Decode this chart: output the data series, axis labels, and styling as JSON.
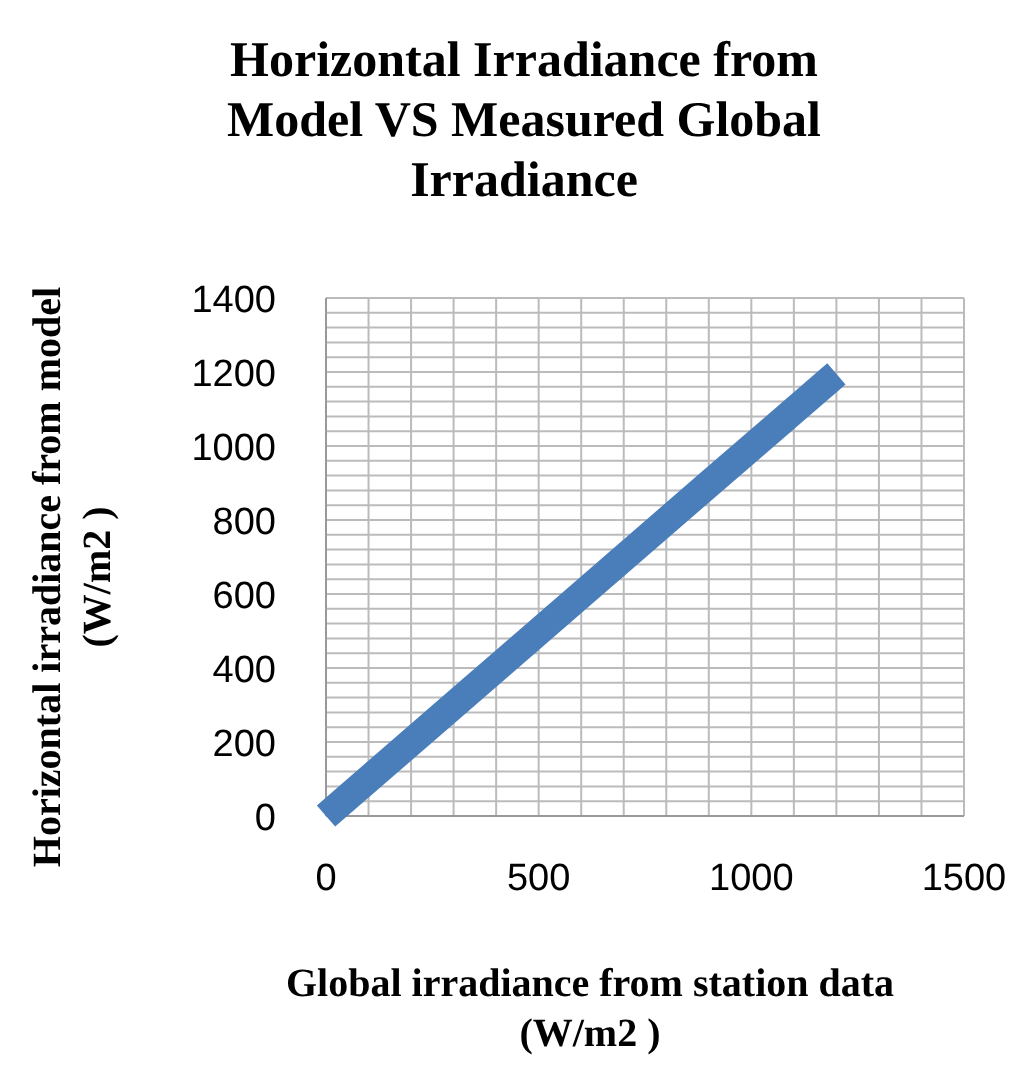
{
  "chart_data": {
    "type": "line",
    "title": "Horizontal Irradiance from Model VS Measured Global Irradiance",
    "xlabel": "Global irradiance from station data (W/m2 )",
    "ylabel": "Horizontal irradiance from model (W/m2 )",
    "x": [
      0,
      300,
      600,
      900,
      1200
    ],
    "series": [
      {
        "color": "#4a7ebb",
        "values": [
          0,
          299,
          598,
          897,
          1195
        ]
      }
    ],
    "xlim": [
      0,
      1500
    ],
    "ylim": [
      0,
      1400
    ],
    "xticks": [
      0,
      {
        "value": 100,
        "label": null
      },
      {
        "value": 200,
        "label": null
      },
      {
        "value": 300,
        "label": null
      },
      {
        "value": 400,
        "label": null
      },
      500,
      {
        "value": 600,
        "label": null
      },
      {
        "value": 700,
        "label": null
      },
      {
        "value": 800,
        "label": null
      },
      {
        "value": 900,
        "label": null
      },
      1000,
      {
        "value": 1100,
        "label": null
      },
      {
        "value": 1200,
        "label": null
      },
      {
        "value": 1300,
        "label": null
      },
      {
        "value": 1400,
        "label": null
      },
      1500
    ],
    "yticks": [
      0,
      {
        "value": 40,
        "label": null
      },
      {
        "value": 80,
        "label": null
      },
      {
        "value": 120,
        "label": null
      },
      {
        "value": 160,
        "label": null
      },
      200,
      {
        "value": 240,
        "label": null
      },
      {
        "value": 280,
        "label": null
      },
      {
        "value": 320,
        "label": null
      },
      {
        "value": 360,
        "label": null
      },
      400,
      {
        "value": 440,
        "label": null
      },
      {
        "value": 480,
        "label": null
      },
      {
        "value": 520,
        "label": null
      },
      {
        "value": 560,
        "label": null
      },
      600,
      {
        "value": 640,
        "label": null
      },
      {
        "value": 680,
        "label": null
      },
      {
        "value": 720,
        "label": null
      },
      {
        "value": 760,
        "label": null
      },
      800,
      {
        "value": 840,
        "label": null
      },
      {
        "value": 880,
        "label": null
      },
      {
        "value": 920,
        "label": null
      },
      {
        "value": 960,
        "label": null
      },
      1000,
      {
        "value": 1040,
        "label": null
      },
      {
        "value": 1080,
        "label": null
      },
      {
        "value": 1120,
        "label": null
      },
      {
        "value": 1160,
        "label": null
      },
      1200,
      {
        "value": 1240,
        "label": null
      },
      {
        "value": 1280,
        "label": null
      },
      {
        "value": 1320,
        "label": null
      },
      {
        "value": 1360,
        "label": null
      },
      1400
    ],
    "grid": true,
    "marker": "none",
    "line_style": "solid"
  }
}
